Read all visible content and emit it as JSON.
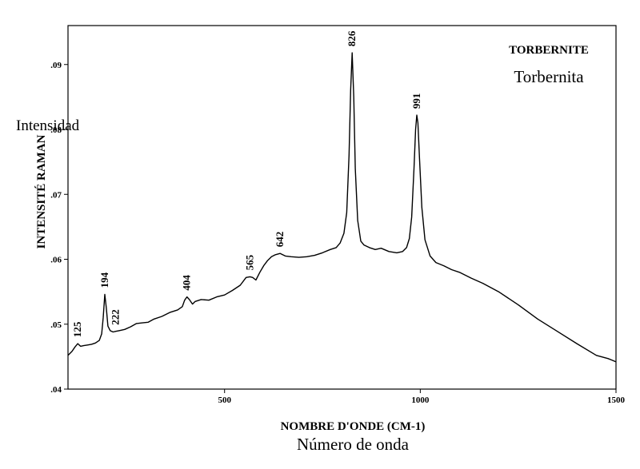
{
  "chart_data": {
    "type": "line",
    "title": "TORBERNITE",
    "subtitle": "Torbernita",
    "xlabel": "NOMBRE D'ONDE (CM-1)",
    "xlabel_secondary": "Número de onda",
    "ylabel": "INTENSITÉ RAMAN",
    "ylabel_secondary": "Intensidad",
    "xlim": [
      100,
      1500
    ],
    "ylim": [
      0.04,
      0.096
    ],
    "xticks": [
      500,
      1000,
      1500
    ],
    "xtick_labels": [
      "500",
      "1000",
      "1500"
    ],
    "yticks": [
      0.04,
      0.05,
      0.06,
      0.07,
      0.08,
      0.09
    ],
    "ytick_labels": [
      ".04",
      ".05",
      ".06",
      ".07",
      ".08",
      ".09"
    ],
    "grid": false,
    "legend_position": "top-right",
    "series": [
      {
        "x": [
          100,
          110,
          118,
          125,
          132,
          140,
          150,
          160,
          170,
          180,
          186,
          190,
          194,
          198,
          202,
          208,
          215,
          222,
          230,
          245,
          260,
          275,
          290,
          305,
          320,
          340,
          360,
          380,
          392,
          398,
          404,
          410,
          418,
          425,
          440,
          460,
          480,
          500,
          520,
          540,
          555,
          565,
          572,
          580,
          590,
          600,
          610,
          620,
          630,
          642,
          655,
          670,
          690,
          710,
          730,
          750,
          770,
          785,
          795,
          805,
          812,
          818,
          822,
          826,
          830,
          834,
          840,
          848,
          856,
          870,
          885,
          900,
          920,
          940,
          955,
          965,
          972,
          978,
          984,
          988,
          991,
          994,
          998,
          1004,
          1012,
          1025,
          1040,
          1060,
          1080,
          1100,
          1130,
          1160,
          1200,
          1250,
          1300,
          1350,
          1400,
          1450,
          1480,
          1500
        ],
        "y": [
          0.0452,
          0.0458,
          0.0465,
          0.047,
          0.0466,
          0.0467,
          0.0468,
          0.0469,
          0.0471,
          0.0475,
          0.0485,
          0.051,
          0.0546,
          0.0525,
          0.0497,
          0.049,
          0.0488,
          0.0489,
          0.049,
          0.0492,
          0.0496,
          0.0501,
          0.0502,
          0.0503,
          0.0508,
          0.0512,
          0.0518,
          0.0522,
          0.0527,
          0.0537,
          0.0542,
          0.0538,
          0.0531,
          0.0535,
          0.0538,
          0.0537,
          0.0542,
          0.0545,
          0.0552,
          0.056,
          0.0572,
          0.0573,
          0.0572,
          0.0568,
          0.058,
          0.059,
          0.0598,
          0.0604,
          0.0607,
          0.0609,
          0.0605,
          0.0604,
          0.0603,
          0.0604,
          0.0606,
          0.061,
          0.0615,
          0.0618,
          0.0625,
          0.064,
          0.0672,
          0.076,
          0.086,
          0.0918,
          0.085,
          0.074,
          0.066,
          0.0628,
          0.0622,
          0.0618,
          0.0615,
          0.0617,
          0.0612,
          0.061,
          0.0612,
          0.0618,
          0.0632,
          0.0665,
          0.074,
          0.08,
          0.0822,
          0.081,
          0.0755,
          0.068,
          0.063,
          0.0605,
          0.0595,
          0.059,
          0.0584,
          0.058,
          0.0571,
          0.0563,
          0.055,
          0.053,
          0.0508,
          0.0489,
          0.047,
          0.0452,
          0.0447,
          0.0442
        ]
      }
    ],
    "annotations": [
      {
        "x": 125,
        "y": 0.047,
        "text": "125"
      },
      {
        "x": 194,
        "y": 0.0546,
        "text": "194"
      },
      {
        "x": 222,
        "y": 0.0489,
        "text": "222"
      },
      {
        "x": 404,
        "y": 0.0542,
        "text": "404"
      },
      {
        "x": 565,
        "y": 0.0573,
        "text": "565"
      },
      {
        "x": 642,
        "y": 0.0609,
        "text": "642"
      },
      {
        "x": 826,
        "y": 0.0918,
        "text": "826"
      },
      {
        "x": 991,
        "y": 0.0822,
        "text": "991"
      }
    ]
  }
}
